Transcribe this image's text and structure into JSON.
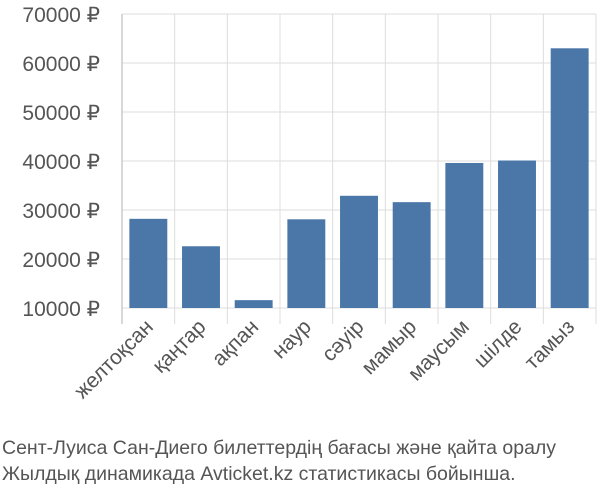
{
  "chart_data": {
    "type": "bar",
    "categories": [
      "желтоқсан",
      "қаңтар",
      "ақпан",
      "наур",
      "сәуір",
      "мамыр",
      "маусым",
      "шілде",
      "тамыз"
    ],
    "values": [
      28200,
      22600,
      11600,
      28100,
      32900,
      31600,
      39600,
      40100,
      63000
    ],
    "yticks": [
      10000,
      20000,
      30000,
      40000,
      50000,
      60000,
      70000
    ],
    "ytick_labels": [
      "10000 ₽",
      "20000 ₽",
      "30000 ₽",
      "40000 ₽",
      "50000 ₽",
      "60000 ₽",
      "70000 ₽"
    ],
    "ylim": [
      10000,
      70000
    ],
    "grid": true,
    "bar_color": "#4a76a8",
    "grid_color": "#dddddd",
    "title": "",
    "xlabel": "",
    "ylabel": ""
  },
  "caption": {
    "line1": "Сент-Луиса Сан-Диего билеттердің бағасы және қайта оралу",
    "line2": "Жылдық динамикада Avticket.kz статистикасы бойынша."
  }
}
